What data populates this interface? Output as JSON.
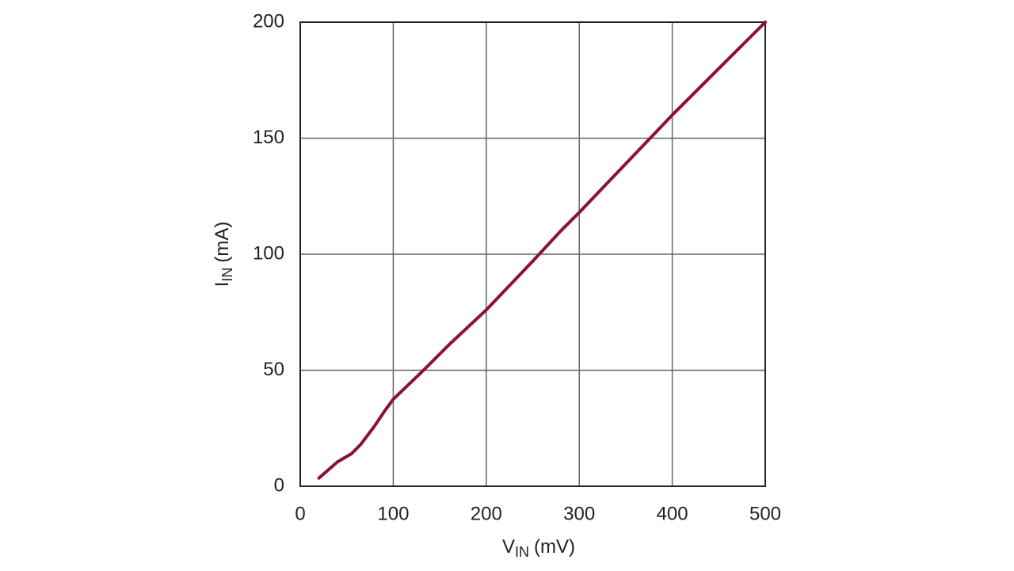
{
  "chart_data": {
    "type": "line",
    "x_label": {
      "main": "V",
      "sub": "IN",
      "unit": "(mV)"
    },
    "y_label": {
      "main": "I",
      "sub": "IN",
      "unit": "(mA)"
    },
    "series": [
      {
        "color": "#8c1038",
        "x": [
          20,
          30,
          40,
          55,
          65,
          80,
          90,
          100,
          130,
          160,
          200,
          250,
          280,
          300,
          350,
          400,
          450,
          500
        ],
        "values": [
          3.5,
          7,
          10.5,
          14,
          18,
          26,
          32,
          37.5,
          49,
          61,
          76,
          97,
          110,
          118,
          139,
          160,
          180,
          200
        ]
      }
    ],
    "xlim": [
      0,
      500
    ],
    "xticks": [
      0,
      100,
      200,
      300,
      400,
      500
    ],
    "ylim": [
      0,
      200
    ],
    "yticks": [
      0,
      50,
      100,
      150,
      200
    ],
    "grid": true
  }
}
